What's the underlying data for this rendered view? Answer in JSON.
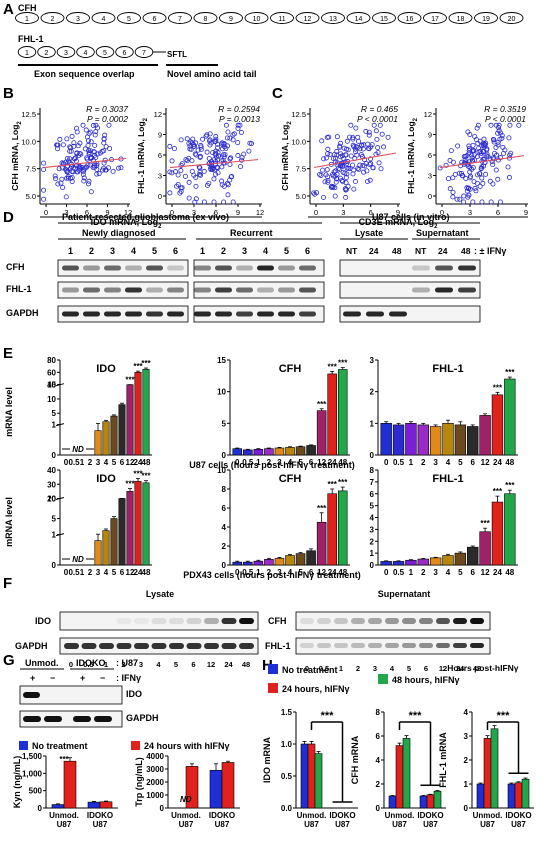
{
  "panel_letters": [
    "A",
    "B",
    "C",
    "D",
    "E",
    "F",
    "G",
    "H"
  ],
  "panel_a": {
    "cfh_label": "CFH",
    "cfh_exons": [
      "1",
      "2",
      "3",
      "4",
      "5",
      "6",
      "7",
      "8",
      "9",
      "10",
      "11",
      "12",
      "13",
      "14",
      "15",
      "16",
      "17",
      "18",
      "19",
      "20"
    ],
    "fhl_label": "FHL-1",
    "fhl_exons": [
      "1",
      "2",
      "3",
      "4",
      "5",
      "6",
      "7"
    ],
    "tail": "SFTL",
    "overlap_caption": "Exon sequence overlap",
    "novel_caption": "Novel amino acid tail"
  },
  "panel_b": {
    "xlabel": "IDO mRNA, Log",
    "sub": "2",
    "plots": [
      {
        "ylabel": "CFH mRNA, Log",
        "r": "R = 0.3037",
        "p": "P = 0.0002",
        "xticks": [
          "0",
          "3",
          "6",
          "9",
          "12"
        ],
        "yticks": [
          "5.0",
          "7.5",
          "10.0",
          "12.5"
        ]
      },
      {
        "ylabel": "FHL-1 mRNA, Log",
        "r": "R = 0.2594",
        "p": "P = 0.0013",
        "xticks": [
          "0",
          "3",
          "6",
          "9",
          "12"
        ],
        "yticks": [
          "0",
          "3",
          "6",
          "9",
          "12"
        ]
      }
    ]
  },
  "panel_c": {
    "xlabel": "CD3E mRNA, Log",
    "sub": "2",
    "plots": [
      {
        "ylabel": "CFH mRNA, Log",
        "r": "R = 0.465",
        "p": "P < 0.0001",
        "xticks": [
          "0",
          "3",
          "6",
          "9"
        ],
        "yticks": [
          "5.0",
          "7.5",
          "10.0",
          "12.5"
        ]
      },
      {
        "ylabel": "FHL-1 mRNA, Log",
        "r": "R = 0.3519",
        "p": "P < 0.0001",
        "xticks": [
          "0",
          "3",
          "6",
          "9"
        ],
        "yticks": [
          "0",
          "3",
          "6",
          "9",
          "12"
        ]
      }
    ]
  },
  "panel_d": {
    "left_title": "Patient-resected glioblastoma (ex vivo)",
    "newly": "Newly diagnosed",
    "recurrent": "Recurrent",
    "lanes": [
      "1",
      "2",
      "3",
      "4",
      "5",
      "6"
    ],
    "right_title": "U87 cells (in vitro)",
    "lysate": "Lysate",
    "supernatant": "Supernatant",
    "right_lanes": [
      "NT",
      "24",
      "48",
      "NT",
      "24",
      "48"
    ],
    "ifn": ": ± IFNγ",
    "rows": [
      "CFH",
      "FHL-1",
      "GAPDH"
    ]
  },
  "panel_e": {
    "ylabel": "mRNA level",
    "nd": "ND",
    "xcats": [
      "0",
      "0.5",
      "1",
      "2",
      "3",
      "4",
      "5",
      "6",
      "12",
      "24",
      "48"
    ],
    "u87_caption": "U87 cells (hours post-hIFNγ treatment)",
    "pdx_caption": "PDX43 cells (hours post-hIFNγ treatment)",
    "stars": "***"
  },
  "panel_f": {
    "lysate": "Lysate",
    "supernatant": "Supernatant",
    "rows_left": [
      "IDO",
      "GAPDH"
    ],
    "rows_right": [
      "CFH",
      "FHL-1"
    ],
    "xcats": [
      "0",
      "0.5",
      "1",
      "2",
      "3",
      "4",
      "5",
      "6",
      "12",
      "24",
      "48"
    ],
    "caption": ": Hours post-hIFNγ"
  },
  "panel_g": {
    "unmod": "Unmod.",
    "idoko": "IDOKO",
    "u87": ": U87",
    "ifn": ": IFNγ",
    "signs": [
      "+",
      "−",
      "+",
      "−"
    ],
    "rows": [
      "IDO",
      "GAPDH"
    ],
    "legend_nt": "No treatment",
    "legend_24": "24 hours with hIFNγ",
    "kyn_label": "Kyn (ng/mL)",
    "trp_label": "Trp (ng/mL)",
    "kyn_ticks": [
      "0",
      "500",
      "1,000",
      "1,500"
    ],
    "trp_ticks": [
      "0",
      "1000",
      "2000",
      "3000",
      "4000"
    ],
    "nd": "ND",
    "xcat1": "Unmod.",
    "xcat2": "IDOKO",
    "xsub": "U87",
    "stars": "***"
  },
  "panel_h": {
    "legend": [
      "No treatment",
      "24 hours, hIFNγ",
      "48 hours, hIFNγ"
    ],
    "xcat1": "Unmod.",
    "xcat2": "IDOKO",
    "xsub": "U87",
    "stars": "***"
  },
  "colors": {
    "blue": "#1f2fd6",
    "red": "#e0211c",
    "green": "#22a84a",
    "scatter": "#2b2bd1",
    "fit": "#e05060"
  },
  "chart_data": [
    {
      "type": "bar",
      "id": "E-U87-IDO",
      "title": "IDO",
      "categories": [
        "0",
        "0.5",
        "1",
        "2",
        "3",
        "4",
        "5",
        "6",
        "12",
        "24",
        "48"
      ],
      "values": [
        0,
        0,
        0,
        0,
        0.8,
        2.0,
        4.0,
        8.0,
        20.0,
        60.0,
        65.0
      ],
      "errors": [
        0,
        0,
        0,
        0,
        0.6,
        0.5,
        0.4,
        0.5,
        2.0,
        2.0,
        2.0
      ],
      "yticks": [
        "0",
        "1",
        "5",
        "10",
        "15",
        "40",
        "60",
        "80"
      ],
      "segments": [
        {
          "from": 0,
          "to": 1,
          "h": 0.32
        },
        {
          "from": 1,
          "to": 15,
          "h": 0.42
        },
        {
          "from": 40,
          "to": 80,
          "h": 0.26
        }
      ],
      "nd_range": [
        0,
        3
      ],
      "stars": [
        8,
        9,
        10
      ]
    },
    {
      "type": "bar",
      "id": "E-U87-CFH",
      "title": "CFH",
      "categories": [
        "0",
        "0.5",
        "1",
        "2",
        "3",
        "4",
        "5",
        "6",
        "12",
        "24",
        "48"
      ],
      "values": [
        1.0,
        0.8,
        0.9,
        1.0,
        1.1,
        1.2,
        1.3,
        1.5,
        7.0,
        12.8,
        13.5
      ],
      "errors": [
        0.1,
        0.1,
        0.1,
        0.1,
        0.1,
        0.1,
        0.1,
        0.1,
        0.3,
        0.4,
        0.3
      ],
      "yticks": [
        "0",
        "5",
        "10",
        "15"
      ],
      "ylim": [
        0,
        15
      ],
      "stars": [
        8,
        9,
        10
      ]
    },
    {
      "type": "bar",
      "id": "E-U87-FHL1",
      "title": "FHL-1",
      "categories": [
        "0",
        "0.5",
        "1",
        "2",
        "3",
        "4",
        "5",
        "6",
        "12",
        "24",
        "48"
      ],
      "values": [
        1.0,
        0.95,
        1.0,
        0.95,
        0.9,
        1.0,
        0.95,
        0.9,
        1.25,
        1.9,
        2.4
      ],
      "errors": [
        0.05,
        0.05,
        0.05,
        0.05,
        0.05,
        0.1,
        0.1,
        0.05,
        0.05,
        0.08,
        0.06
      ],
      "yticks": [
        "0",
        "1",
        "2",
        "3"
      ],
      "ylim": [
        0,
        3
      ],
      "stars": [
        9,
        10
      ]
    },
    {
      "type": "bar",
      "id": "E-PDX43-IDO",
      "title": "IDO",
      "categories": [
        "0",
        "0.5",
        "1",
        "2",
        "3",
        "4",
        "5",
        "6",
        "12",
        "24",
        "48"
      ],
      "values": [
        0,
        0,
        0,
        0,
        0.8,
        2.0,
        5.0,
        10.0,
        25.0,
        32.0,
        31.0
      ],
      "errors": [
        0,
        0,
        0,
        0,
        0.3,
        0.4,
        0.5,
        0.8,
        2.0,
        2.0,
        1.5
      ],
      "yticks": [
        "0",
        "1",
        "5",
        "10",
        "20",
        "30",
        "40"
      ],
      "segments": [
        {
          "from": 0,
          "to": 1,
          "h": 0.32
        },
        {
          "from": 1,
          "to": 10,
          "h": 0.38
        },
        {
          "from": 20,
          "to": 40,
          "h": 0.3
        }
      ],
      "nd_range": [
        0,
        3
      ],
      "stars": [
        8,
        9,
        10
      ]
    },
    {
      "type": "bar",
      "id": "E-PDX43-CFH",
      "title": "CFH",
      "categories": [
        "0",
        "0.5",
        "1",
        "2",
        "3",
        "4",
        "5",
        "6",
        "12",
        "24",
        "48"
      ],
      "values": [
        0.3,
        0.3,
        0.4,
        0.6,
        0.7,
        1.0,
        1.2,
        1.5,
        4.5,
        7.5,
        7.8
      ],
      "errors": [
        0.1,
        0.1,
        0.1,
        0.1,
        0.1,
        0.1,
        0.1,
        0.2,
        1.0,
        0.5,
        0.4
      ],
      "yticks": [
        "0",
        "2",
        "4",
        "6",
        "8",
        "10"
      ],
      "ylim": [
        0,
        10
      ],
      "stars": [
        8,
        9,
        10
      ]
    },
    {
      "type": "bar",
      "id": "E-PDX43-FHL1",
      "title": "FHL-1",
      "categories": [
        "0",
        "0.5",
        "1",
        "2",
        "3",
        "4",
        "5",
        "6",
        "12",
        "24",
        "48"
      ],
      "values": [
        0.3,
        0.3,
        0.4,
        0.5,
        0.6,
        0.8,
        1.0,
        1.5,
        2.8,
        5.3,
        6.0
      ],
      "errors": [
        0.05,
        0.05,
        0.05,
        0.05,
        0.05,
        0.1,
        0.1,
        0.1,
        0.3,
        0.5,
        0.3
      ],
      "yticks": [
        "0",
        "1",
        "2",
        "3",
        "4",
        "5",
        "6",
        "7",
        "8"
      ],
      "ylim": [
        0,
        8
      ],
      "stars": [
        8,
        9,
        10
      ]
    },
    {
      "type": "bar",
      "id": "G-Kyn",
      "ylabel": "Kyn (ng/mL)",
      "categories": [
        "Unmod. U87",
        "IDOKO U87"
      ],
      "series": [
        {
          "name": "No treatment",
          "values": [
            100,
            170
          ]
        },
        {
          "name": "24 hours with hIFNγ",
          "values": [
            1350,
            180
          ]
        }
      ],
      "errors": [
        [
          20,
          20
        ],
        [
          100,
          20
        ]
      ],
      "ylim": [
        0,
        1500
      ]
    },
    {
      "type": "bar",
      "id": "G-Trp",
      "ylabel": "Trp (ng/mL)",
      "categories": [
        "Unmod. U87",
        "IDOKO U87"
      ],
      "series": [
        {
          "name": "No treatment",
          "values": [
            0,
            2900
          ]
        },
        {
          "name": "24 hours with hIFNγ",
          "values": [
            3200,
            3500
          ]
        }
      ],
      "errors": [
        [
          0,
          500
        ],
        [
          200,
          100
        ]
      ],
      "ylim": [
        0,
        4000
      ]
    },
    {
      "type": "bar",
      "id": "H-IDO",
      "ylabel": "IDO mRNA",
      "categories": [
        "Unmod. U87",
        "IDOKO U87"
      ],
      "series": [
        {
          "name": "No treatment",
          "values": [
            1.0,
            0
          ]
        },
        {
          "name": "24 hours, hIFNγ",
          "values": [
            1.0,
            0
          ]
        },
        {
          "name": "48 hours, hIFNγ",
          "values": [
            0.85,
            0
          ]
        }
      ],
      "yticks": [
        "0.0",
        "0.5",
        "1.0",
        "1.5"
      ],
      "ylim": [
        0,
        1.5
      ]
    },
    {
      "type": "bar",
      "id": "H-CFH",
      "ylabel": "CFH mRNA",
      "categories": [
        "Unmod. U87",
        "IDOKO U87"
      ],
      "series": [
        {
          "name": "No treatment",
          "values": [
            1.0,
            1.0
          ]
        },
        {
          "name": "24 hours, hIFNγ",
          "values": [
            5.2,
            1.1
          ]
        },
        {
          "name": "48 hours, hIFNγ",
          "values": [
            5.8,
            1.4
          ]
        }
      ],
      "yticks": [
        "0",
        "2",
        "4",
        "6",
        "8"
      ],
      "ylim": [
        0,
        8
      ]
    },
    {
      "type": "bar",
      "id": "H-FHL1",
      "ylabel": "FHL-1 mRNA",
      "categories": [
        "Unmod. U87",
        "IDOKO U87"
      ],
      "series": [
        {
          "name": "No treatment",
          "values": [
            1.0,
            1.0
          ]
        },
        {
          "name": "24 hours, hIFNγ",
          "values": [
            2.9,
            1.05
          ]
        },
        {
          "name": "48 hours, hIFNγ",
          "values": [
            3.3,
            1.2
          ]
        }
      ],
      "yticks": [
        "0",
        "1",
        "2",
        "3",
        "4"
      ],
      "ylim": [
        0,
        4
      ]
    }
  ]
}
